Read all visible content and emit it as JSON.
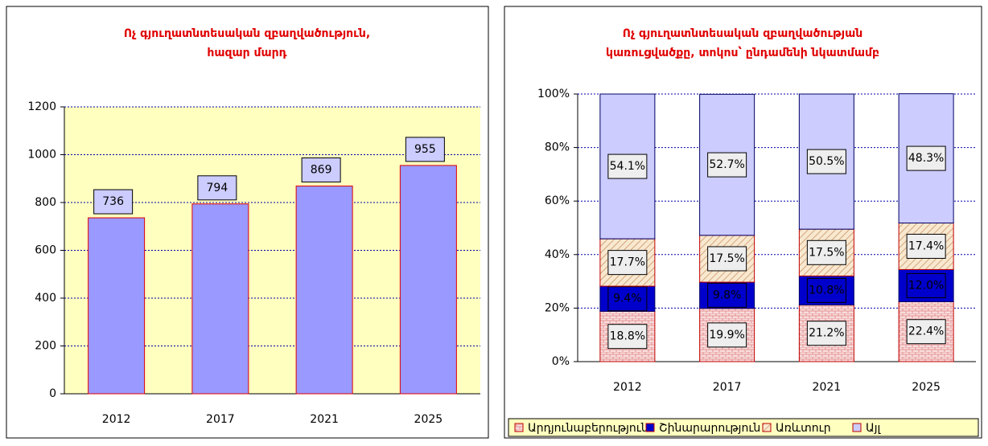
{
  "chart_data": [
    {
      "type": "bar",
      "title": [
        "Ոչ գյուղատնտեսական զբաղվածություն,",
        "հազար մարդ"
      ],
      "categories": [
        "2012",
        "2017",
        "2021",
        "2025"
      ],
      "values": [
        736,
        794,
        869,
        955
      ],
      "color": "#9999ff",
      "ylim": [
        0,
        1200
      ],
      "yticks": [
        0,
        200,
        400,
        600,
        800,
        1000,
        1200
      ],
      "grid": true
    },
    {
      "type": "stacked_bar",
      "title": [
        "Ոչ գյուղատնտեսական զբաղվածության",
        "կառուցվածքը, տոկոս՝ ընդամենի նկատմամբ"
      ],
      "categories": [
        "2012",
        "2017",
        "2021",
        "2025"
      ],
      "series": [
        {
          "name": "Արդյունաբերություն",
          "color": "#f4c8c8",
          "values": [
            18.8,
            19.9,
            21.2,
            22.4
          ],
          "value_labels": [
            "18.8%",
            "19.9%",
            "21.2%",
            "22.4%"
          ]
        },
        {
          "name": "Շինարարություն",
          "color": "#0000cc",
          "values": [
            9.4,
            9.8,
            10.8,
            12.0
          ],
          "value_labels": [
            "9.4%",
            "9.8%",
            "10.8%",
            "12.0%"
          ]
        },
        {
          "name": "Առևտուր",
          "color": "#f5dcc0",
          "values": [
            17.7,
            17.5,
            17.5,
            17.4
          ],
          "value_labels": [
            "17.7%",
            "17.5%",
            "17.5%",
            "17.4%"
          ]
        },
        {
          "name": "Այլ",
          "color": "#ccccff",
          "values": [
            54.1,
            52.7,
            50.5,
            48.3
          ],
          "value_labels": [
            "54.1%",
            "52.7%",
            "50.5%",
            "48.3%"
          ]
        }
      ],
      "ylim": [
        0,
        100
      ],
      "yticks": [
        {
          "value": 0,
          "label": "0%"
        },
        {
          "value": 20,
          "label": "20%"
        },
        {
          "value": 40,
          "label": "40%"
        },
        {
          "value": 60,
          "label": "60%"
        },
        {
          "value": 80,
          "label": "80%"
        },
        {
          "value": 100,
          "label": "100%"
        }
      ],
      "grid": true,
      "legend": "bottom"
    }
  ]
}
